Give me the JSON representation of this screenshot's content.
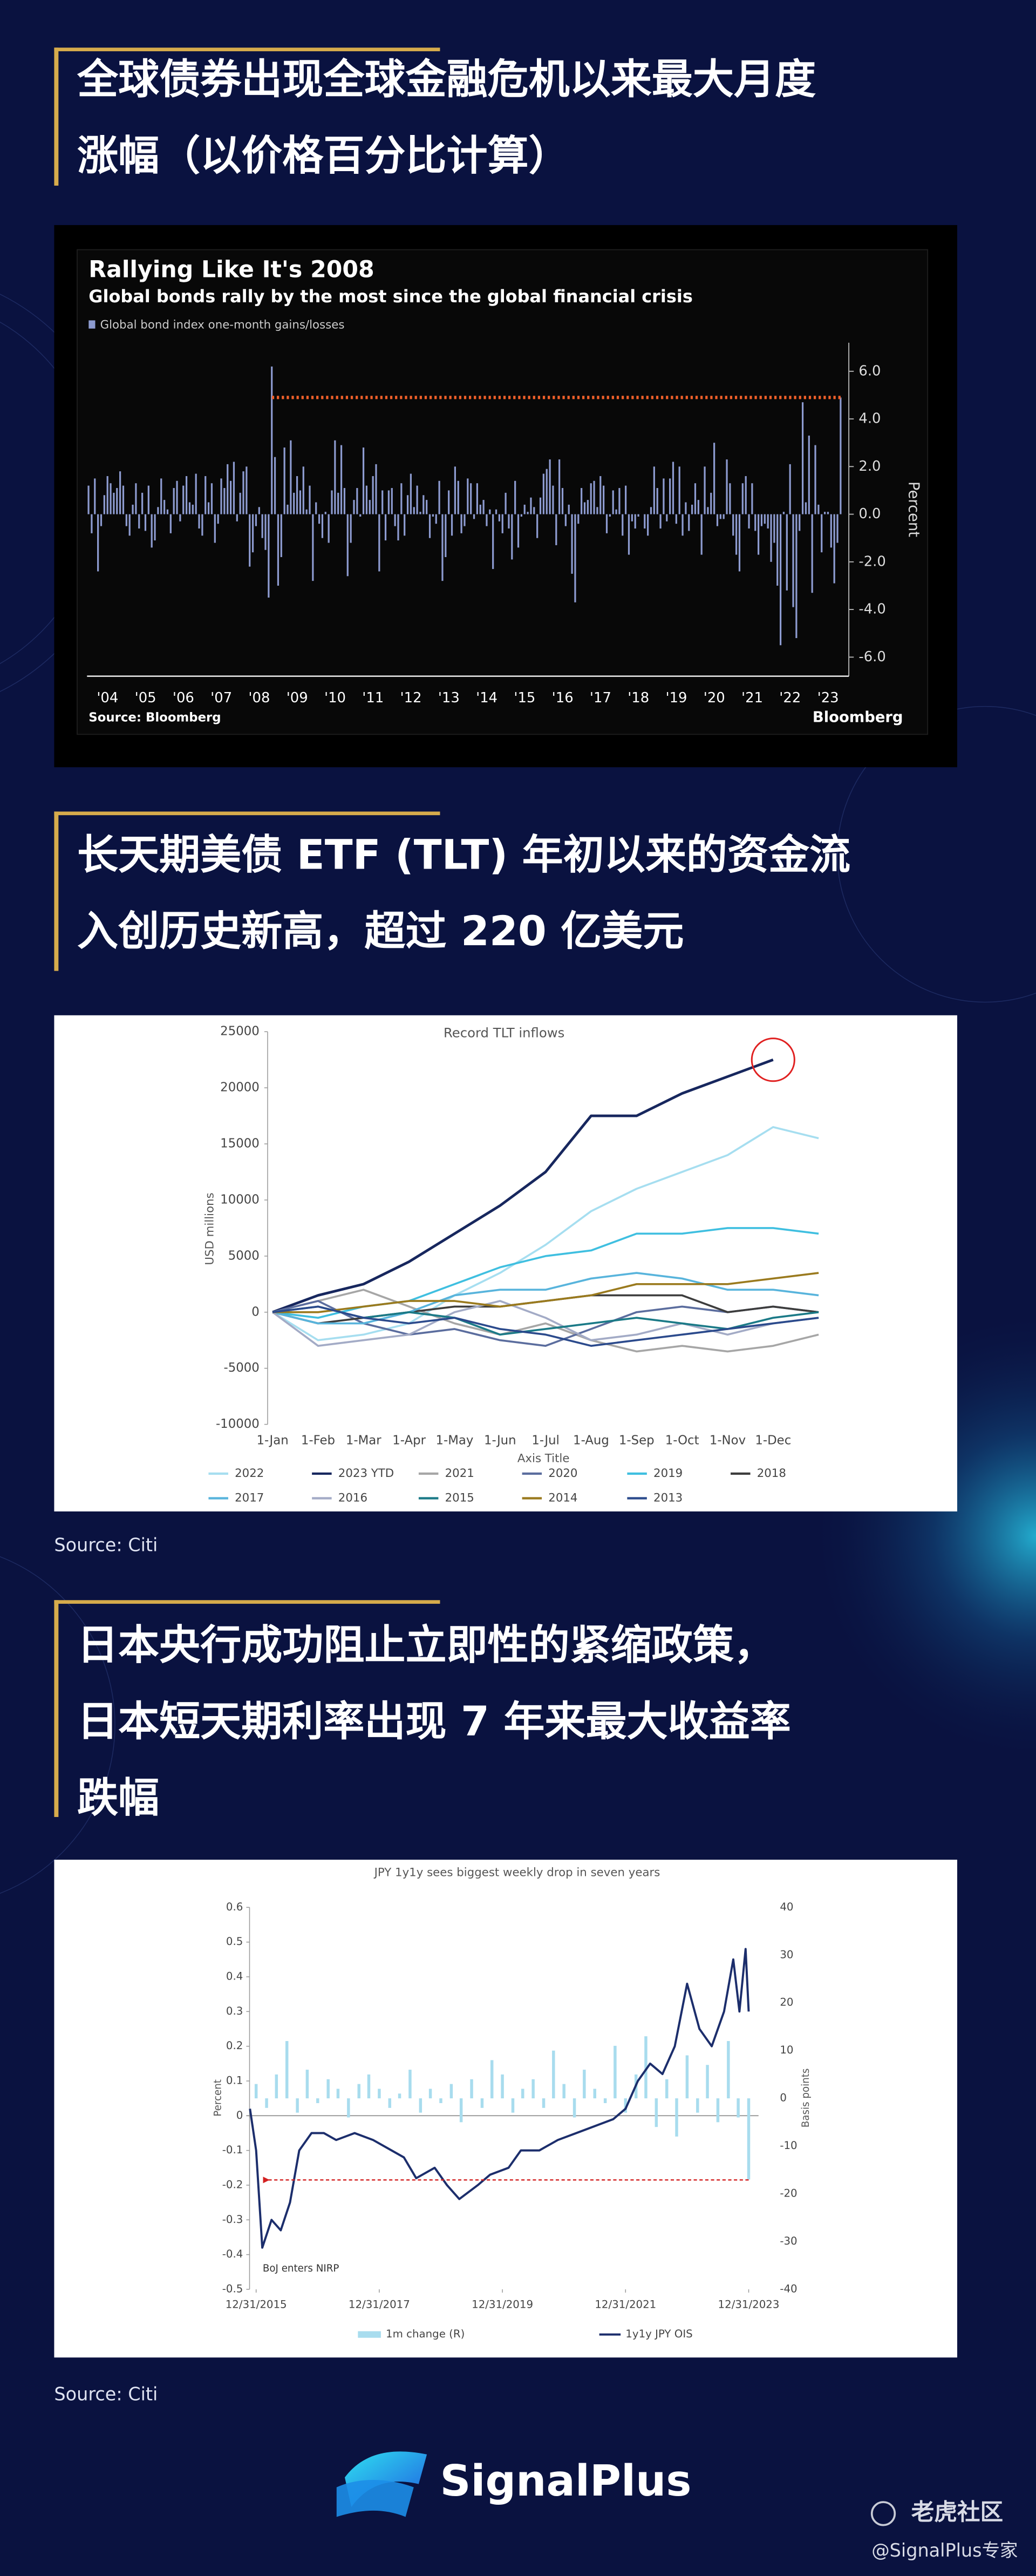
{
  "sections": [
    {
      "heading": [
        "全球债券出现全球金融危机以来最大月度",
        "涨幅（以价格百分比计算）"
      ]
    },
    {
      "heading": [
        "长天期美债 ETF (TLT) 年初以来的资金流",
        "入创历史新高，超过 220 亿美元"
      ],
      "source": "Source: Citi"
    },
    {
      "heading": [
        "日本央行成功阻止立即性的紧缩政策，",
        "日本短天期利率出现 7 年来最大收益率",
        "跌幅"
      ],
      "source": "Source: Citi"
    }
  ],
  "chart_data": [
    {
      "type": "bar",
      "title": "Rallying Like It's 2008",
      "subtitle": "Global bonds rally by the most since the global financial crisis",
      "legend": "Global bond index one-month gains/losses",
      "y_label": "Percent",
      "source": "Source: Bloomberg",
      "brand": "Bloomberg",
      "color": "#8d9bd0",
      "reference_line": 4.9,
      "reference_color": "#f0602a",
      "ylim": [
        -6.8,
        7.2
      ],
      "yticks": [
        {
          "value": 6,
          "label": "6.0"
        },
        {
          "value": 4,
          "label": "4.0"
        },
        {
          "value": 2,
          "label": "2.0"
        },
        {
          "value": 0,
          "label": "0.0"
        },
        {
          "value": -2,
          "label": "-2.0"
        },
        {
          "value": -4,
          "label": "-4.0"
        },
        {
          "value": -6,
          "label": "-6.0"
        }
      ],
      "categories": [
        null,
        null,
        null,
        null,
        null,
        null,
        "'04",
        null,
        null,
        null,
        null,
        null,
        null,
        null,
        null,
        null,
        null,
        null,
        "'05",
        null,
        null,
        null,
        null,
        null,
        null,
        null,
        null,
        null,
        null,
        null,
        "'06",
        null,
        null,
        null,
        null,
        null,
        null,
        null,
        null,
        null,
        null,
        null,
        "'07",
        null,
        null,
        null,
        null,
        null,
        null,
        null,
        null,
        null,
        null,
        null,
        "'08",
        null,
        null,
        null,
        null,
        null,
        null,
        null,
        null,
        null,
        null,
        null,
        "'09",
        null,
        null,
        null,
        null,
        null,
        null,
        null,
        null,
        null,
        null,
        null,
        "'10",
        null,
        null,
        null,
        null,
        null,
        null,
        null,
        null,
        null,
        null,
        null,
        "'11",
        null,
        null,
        null,
        null,
        null,
        null,
        null,
        null,
        null,
        null,
        null,
        "'12",
        null,
        null,
        null,
        null,
        null,
        null,
        null,
        null,
        null,
        null,
        null,
        "'13",
        null,
        null,
        null,
        null,
        null,
        null,
        null,
        null,
        null,
        null,
        null,
        "'14",
        null,
        null,
        null,
        null,
        null,
        null,
        null,
        null,
        null,
        null,
        null,
        "'15",
        null,
        null,
        null,
        null,
        null,
        null,
        null,
        null,
        null,
        null,
        null,
        "'16",
        null,
        null,
        null,
        null,
        null,
        null,
        null,
        null,
        null,
        null,
        null,
        "'17",
        null,
        null,
        null,
        null,
        null,
        null,
        null,
        null,
        null,
        null,
        null,
        "'18",
        null,
        null,
        null,
        null,
        null,
        null,
        null,
        null,
        null,
        null,
        null,
        "'19",
        null,
        null,
        null,
        null,
        null,
        null,
        null,
        null,
        null,
        null,
        null,
        "'20",
        null,
        null,
        null,
        null,
        null,
        null,
        null,
        null,
        null,
        null,
        null,
        "'21",
        null,
        null,
        null,
        null,
        null,
        null,
        null,
        null,
        null,
        null,
        null,
        "'22",
        null,
        null,
        null,
        null,
        null,
        null,
        null,
        null,
        null,
        null,
        null,
        "'23",
        null,
        null,
        null,
        null
      ],
      "values": [
        1.2,
        -0.8,
        1.5,
        -2.4,
        -0.5,
        0.8,
        1.6,
        1.3,
        0.9,
        1.1,
        1.8,
        1.2,
        -0.5,
        -0.9,
        0.4,
        1.3,
        -0.6,
        0.9,
        -0.7,
        1.2,
        -1.4,
        -1.1,
        0.3,
        1.5,
        0.6,
        0.2,
        -0.8,
        1.1,
        1.4,
        -0.3,
        1.2,
        1.6,
        0.5,
        0.4,
        1.7,
        -0.6,
        -0.9,
        1.6,
        0.5,
        1.3,
        -1.2,
        -0.4,
        1.5,
        1.1,
        2.1,
        1.4,
        2.2,
        -0.3,
        0.9,
        1.8,
        2.0,
        -2.2,
        -1.6,
        -0.5,
        0.3,
        -1.0,
        -1.5,
        -3.5,
        6.2,
        2.4,
        -3.0,
        -1.8,
        2.8,
        0.4,
        3.1,
        0.9,
        1.6,
        1.0,
        2.0,
        0.2,
        1.2,
        -2.8,
        0.5,
        -0.4,
        -1.0,
        0.1,
        -1.2,
        1.0,
        3.1,
        0.9,
        2.9,
        1.1,
        -2.6,
        -1.2,
        0.6,
        1.1,
        -0.1,
        2.8,
        1.2,
        0.6,
        1.6,
        2.1,
        -2.4,
        1.0,
        -1.1,
        1.0,
        1.1,
        -0.5,
        -1.1,
        1.3,
        -0.9,
        0.8,
        1.7,
        0.3,
        1.2,
        0.1,
        0.8,
        0.6,
        -1.0,
        -0.1,
        -0.4,
        1.4,
        -2.8,
        -1.8,
        1.0,
        -0.9,
        2.0,
        1.4,
        -0.8,
        -0.5,
        1.5,
        1.3,
        -0.2,
        1.3,
        0.4,
        0.6,
        -0.5,
        0.2,
        -2.3,
        0.2,
        -0.3,
        -0.8,
        0.9,
        -0.6,
        -1.9,
        1.4,
        -1.4,
        -0.1,
        0.4,
        0.1,
        0.7,
        0.3,
        -1.0,
        0.7,
        1.7,
        1.9,
        2.3,
        1.2,
        -1.3,
        2.3,
        1.1,
        -0.5,
        0.4,
        -2.5,
        -3.7,
        -0.4,
        1.1,
        0.5,
        0.6,
        1.3,
        1.4,
        0.3,
        1.6,
        1.2,
        -0.8,
        -0.1,
        1.0,
        0.2,
        1.1,
        -0.9,
        1.2,
        -1.7,
        -0.3,
        -0.6,
        -0.1,
        0.0,
        -0.6,
        -0.9,
        0.3,
        2.0,
        1.1,
        -0.6,
        1.5,
        -0.3,
        1.5,
        2.2,
        -0.4,
        2.0,
        -0.9,
        0.5,
        -0.7,
        0.4,
        1.3,
        0.6,
        -1.7,
        2.0,
        0.3,
        0.9,
        3.0,
        -0.5,
        -0.2,
        -0.2,
        2.3,
        1.3,
        -0.9,
        -1.7,
        -2.4,
        1.3,
        1.6,
        -0.6,
        1.3,
        -0.7,
        -1.7,
        -0.5,
        -0.4,
        -0.6,
        -2.0,
        -1.2,
        -3.0,
        -5.5,
        0.1,
        -3.2,
        2.1,
        -3.9,
        -5.2,
        -0.7,
        4.7,
        0.5,
        3.3,
        -3.3,
        2.9,
        0.4,
        -1.6,
        0.1,
        0.1,
        -1.4,
        -2.9,
        -1.2,
        4.9
      ]
    },
    {
      "type": "line",
      "title": "Record TLT inflows",
      "y_label": "USD millions",
      "x_label": "Axis Title",
      "ylim": [
        -10000,
        25000
      ],
      "yticks": [
        25000,
        20000,
        15000,
        10000,
        5000,
        0,
        -5000,
        -10000
      ],
      "categories": [
        "1-Jan",
        "1-Feb",
        "1-Mar",
        "1-Apr",
        "1-May",
        "1-Jun",
        "1-Jul",
        "1-Aug",
        "1-Sep",
        "1-Oct",
        "1-Nov",
        "1-Dec",
        null
      ],
      "highlight_series": 1,
      "highlight_color": "#e02020",
      "series": [
        {
          "name": "2022",
          "color": "#a6def0",
          "values": [
            0,
            -2500,
            -2000,
            -1000,
            1500,
            3500,
            6000,
            9000,
            11000,
            12500,
            14000,
            16500,
            15500
          ]
        },
        {
          "name": "2023 YTD",
          "color": "#17275e",
          "values": [
            0,
            1500,
            2500,
            4500,
            7000,
            9500,
            12500,
            17500,
            17500,
            19500,
            21000,
            22500,
            null
          ]
        },
        {
          "name": "2021",
          "color": "#a6a6a6",
          "values": [
            0,
            1000,
            2000,
            500,
            -1000,
            -2000,
            -1000,
            -2500,
            -3500,
            -3000,
            -3500,
            -3000,
            -2000
          ]
        },
        {
          "name": "2020",
          "color": "#5b6d9e",
          "values": [
            0,
            1000,
            -1000,
            -2000,
            -1500,
            -2500,
            -3000,
            -1500,
            0,
            500,
            0,
            500,
            0
          ]
        },
        {
          "name": "2019",
          "color": "#3fbfe0",
          "values": [
            0,
            -500,
            500,
            1000,
            2500,
            4000,
            5000,
            5500,
            7000,
            7000,
            7500,
            7500,
            7000
          ]
        },
        {
          "name": "2018",
          "color": "#3d3d3d",
          "values": [
            0,
            -1000,
            -500,
            0,
            500,
            500,
            1000,
            1500,
            1500,
            1500,
            0,
            500,
            0
          ]
        },
        {
          "name": "2017",
          "color": "#58b4dc",
          "values": [
            0,
            -1000,
            -1000,
            0,
            1500,
            2000,
            2000,
            3000,
            3500,
            3000,
            2000,
            2000,
            1500
          ]
        },
        {
          "name": "2016",
          "color": "#a3abc6",
          "values": [
            0,
            -3000,
            -2500,
            -2000,
            0,
            1000,
            -500,
            -2500,
            -2000,
            -1000,
            -2000,
            -1000,
            -500
          ]
        },
        {
          "name": "2015",
          "color": "#1b7a87",
          "values": [
            0,
            500,
            -500,
            0,
            -500,
            -2000,
            -1500,
            -1000,
            -500,
            -1000,
            -1500,
            -500,
            0
          ]
        },
        {
          "name": "2014",
          "color": "#9a7a1e",
          "values": [
            0,
            0,
            500,
            1000,
            1000,
            500,
            1000,
            1500,
            2500,
            2500,
            2500,
            3000,
            3500
          ]
        },
        {
          "name": "2013",
          "color": "#2b4a8c",
          "values": [
            0,
            500,
            -500,
            -1000,
            -500,
            -1500,
            -2000,
            -3000,
            -2500,
            -2000,
            -1500,
            -1000,
            -500
          ]
        }
      ]
    },
    {
      "type": "combo",
      "title": "JPY 1y1y sees biggest weekly drop in seven years",
      "y_label": "Percent",
      "y2_label": "Basis points",
      "annotation": "BoJ enters NIRP",
      "reference_line": {
        "value": -0.185,
        "x": [
          2016.2,
          2024.0
        ]
      },
      "reference_color": "#d42020",
      "xlim": [
        2015.84,
        2024.16
      ],
      "xticks": [
        {
          "value": 2016,
          "label": "12/31/2015"
        },
        {
          "value": 2018,
          "label": "12/31/2017"
        },
        {
          "value": 2020,
          "label": "12/31/2019"
        },
        {
          "value": 2022,
          "label": "12/31/2021"
        },
        {
          "value": 2024,
          "label": "12/31/2023"
        }
      ],
      "ylim": [
        -0.5,
        0.6
      ],
      "yticks": [
        0.6,
        0.5,
        0.4,
        0.3,
        0.2,
        0.1,
        0,
        -0.1,
        -0.2,
        -0.3,
        -0.4,
        -0.5
      ],
      "y2lim": [
        -40,
        40
      ],
      "y2ticks": [
        40,
        30,
        20,
        10,
        0,
        -10,
        -20,
        -30,
        -40
      ],
      "series": [
        {
          "name": "1m change (R)",
          "type": "bar",
          "axis": "y2",
          "color": "#a8dcee",
          "x": [
            2016,
            2016.17,
            2016.33,
            2016.5,
            2016.67,
            2016.83,
            2017,
            2017.17,
            2017.33,
            2017.5,
            2017.67,
            2017.83,
            2018,
            2018.17,
            2018.33,
            2018.5,
            2018.67,
            2018.83,
            2019,
            2019.17,
            2019.33,
            2019.5,
            2019.67,
            2019.83,
            2020,
            2020.17,
            2020.33,
            2020.5,
            2020.67,
            2020.83,
            2021,
            2021.17,
            2021.33,
            2021.5,
            2021.67,
            2021.83,
            2022,
            2022.17,
            2022.33,
            2022.5,
            2022.67,
            2022.83,
            2023,
            2023.17,
            2023.33,
            2023.5,
            2023.67,
            2023.83,
            2024
          ],
          "values": [
            3,
            -2,
            5,
            12,
            -3,
            6,
            -1,
            4,
            2,
            -4,
            3,
            5,
            2,
            -2,
            1,
            6,
            -3,
            2,
            -1,
            3,
            -5,
            4,
            -2,
            8,
            5,
            -3,
            2,
            4,
            -2,
            10,
            3,
            -4,
            6,
            2,
            -1,
            11,
            -3,
            5,
            13,
            -6,
            4,
            -8,
            9,
            -3,
            7,
            -5,
            12,
            -4,
            -17
          ]
        },
        {
          "name": "1y1y JPY OIS",
          "type": "line",
          "color": "#1c2e6c",
          "x": [
            2015.9,
            2016,
            2016.1,
            2016.25,
            2016.4,
            2016.55,
            2016.7,
            2016.9,
            2017.1,
            2017.3,
            2017.6,
            2017.9,
            2018.2,
            2018.4,
            2018.6,
            2018.9,
            2019.1,
            2019.3,
            2019.6,
            2019.8,
            2020.1,
            2020.3,
            2020.6,
            2020.9,
            2021.2,
            2021.5,
            2021.8,
            2022,
            2022.2,
            2022.4,
            2022.6,
            2022.8,
            2023,
            2023.2,
            2023.4,
            2023.6,
            2023.75,
            2023.85,
            2023.95,
            2024
          ],
          "values": [
            0.02,
            -0.1,
            -0.38,
            -0.3,
            -0.33,
            -0.25,
            -0.1,
            -0.05,
            -0.05,
            -0.07,
            -0.05,
            -0.07,
            -0.1,
            -0.12,
            -0.18,
            -0.15,
            -0.2,
            -0.24,
            -0.2,
            -0.17,
            -0.15,
            -0.1,
            -0.1,
            -0.07,
            -0.05,
            -0.03,
            -0.01,
            0.02,
            0.1,
            0.15,
            0.12,
            0.2,
            0.38,
            0.25,
            0.2,
            0.3,
            0.45,
            0.3,
            0.48,
            0.3
          ]
        }
      ]
    }
  ],
  "footer": {
    "brand": "SignalPlus",
    "community": "老虎社区",
    "handle": "@SignalPlus专家"
  }
}
